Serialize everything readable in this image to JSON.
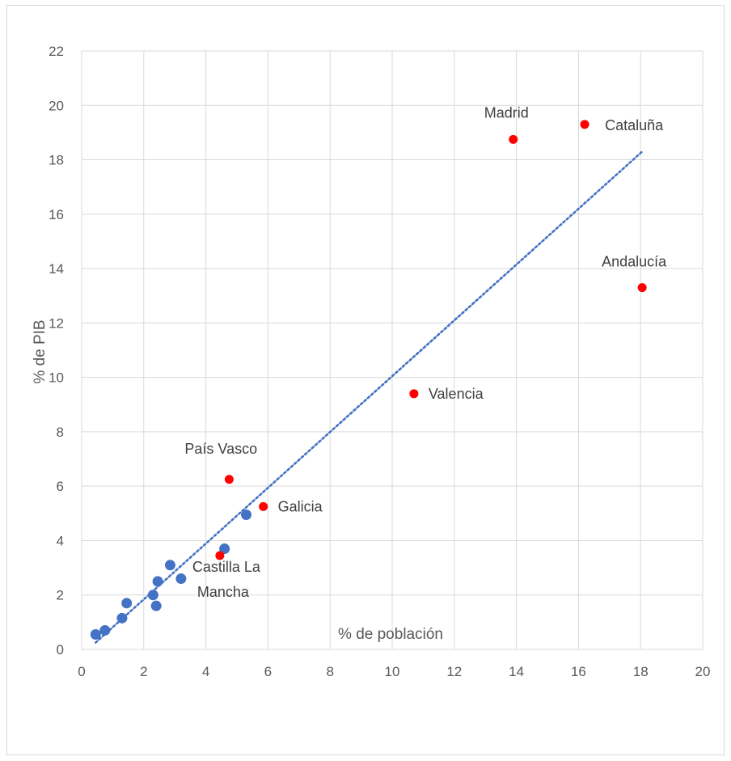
{
  "chart_data": {
    "type": "scatter",
    "title": "",
    "xlabel": "% de población",
    "ylabel": "% de PIB",
    "xlim": [
      0,
      20
    ],
    "ylim": [
      0,
      22
    ],
    "x_ticks": [
      0,
      2,
      4,
      6,
      8,
      10,
      12,
      14,
      16,
      18,
      20
    ],
    "y_ticks": [
      0,
      2,
      4,
      6,
      8,
      10,
      12,
      14,
      16,
      18,
      20,
      22
    ],
    "grid": true,
    "colors": {
      "blue": "#4472c4",
      "red": "#ff0000",
      "trend": "#4472c4",
      "grid": "#d9d9d9"
    },
    "series": [
      {
        "color": "#4472c4",
        "points": [
          {
            "x": 0.45,
            "y": 0.55
          },
          {
            "x": 0.75,
            "y": 0.7
          },
          {
            "x": 1.3,
            "y": 1.15
          },
          {
            "x": 1.45,
            "y": 1.7
          },
          {
            "x": 2.3,
            "y": 2.0
          },
          {
            "x": 2.4,
            "y": 1.6
          },
          {
            "x": 2.45,
            "y": 2.5
          },
          {
            "x": 2.85,
            "y": 3.1
          },
          {
            "x": 3.2,
            "y": 2.6
          },
          {
            "x": 4.6,
            "y": 3.7
          },
          {
            "x": 5.3,
            "y": 4.95
          }
        ]
      },
      {
        "color": "#ff0000",
        "points": [
          {
            "x": 4.45,
            "y": 3.45,
            "label": "Castilla La Mancha"
          },
          {
            "x": 4.75,
            "y": 6.25,
            "label": "País Vasco"
          },
          {
            "x": 5.85,
            "y": 5.25,
            "label": "Galicia"
          },
          {
            "x": 10.7,
            "y": 9.4,
            "label": "Valencia"
          },
          {
            "x": 13.9,
            "y": 18.75,
            "label": "Madrid"
          },
          {
            "x": 16.2,
            "y": 19.3,
            "label": "Cataluña"
          },
          {
            "x": 18.05,
            "y": 13.3,
            "label": "Andalucía"
          }
        ]
      }
    ],
    "trendline": {
      "style": "dotted",
      "x_start": 0.45,
      "y_start": 0.25,
      "x_end": 18.05,
      "y_end": 18.3
    }
  }
}
